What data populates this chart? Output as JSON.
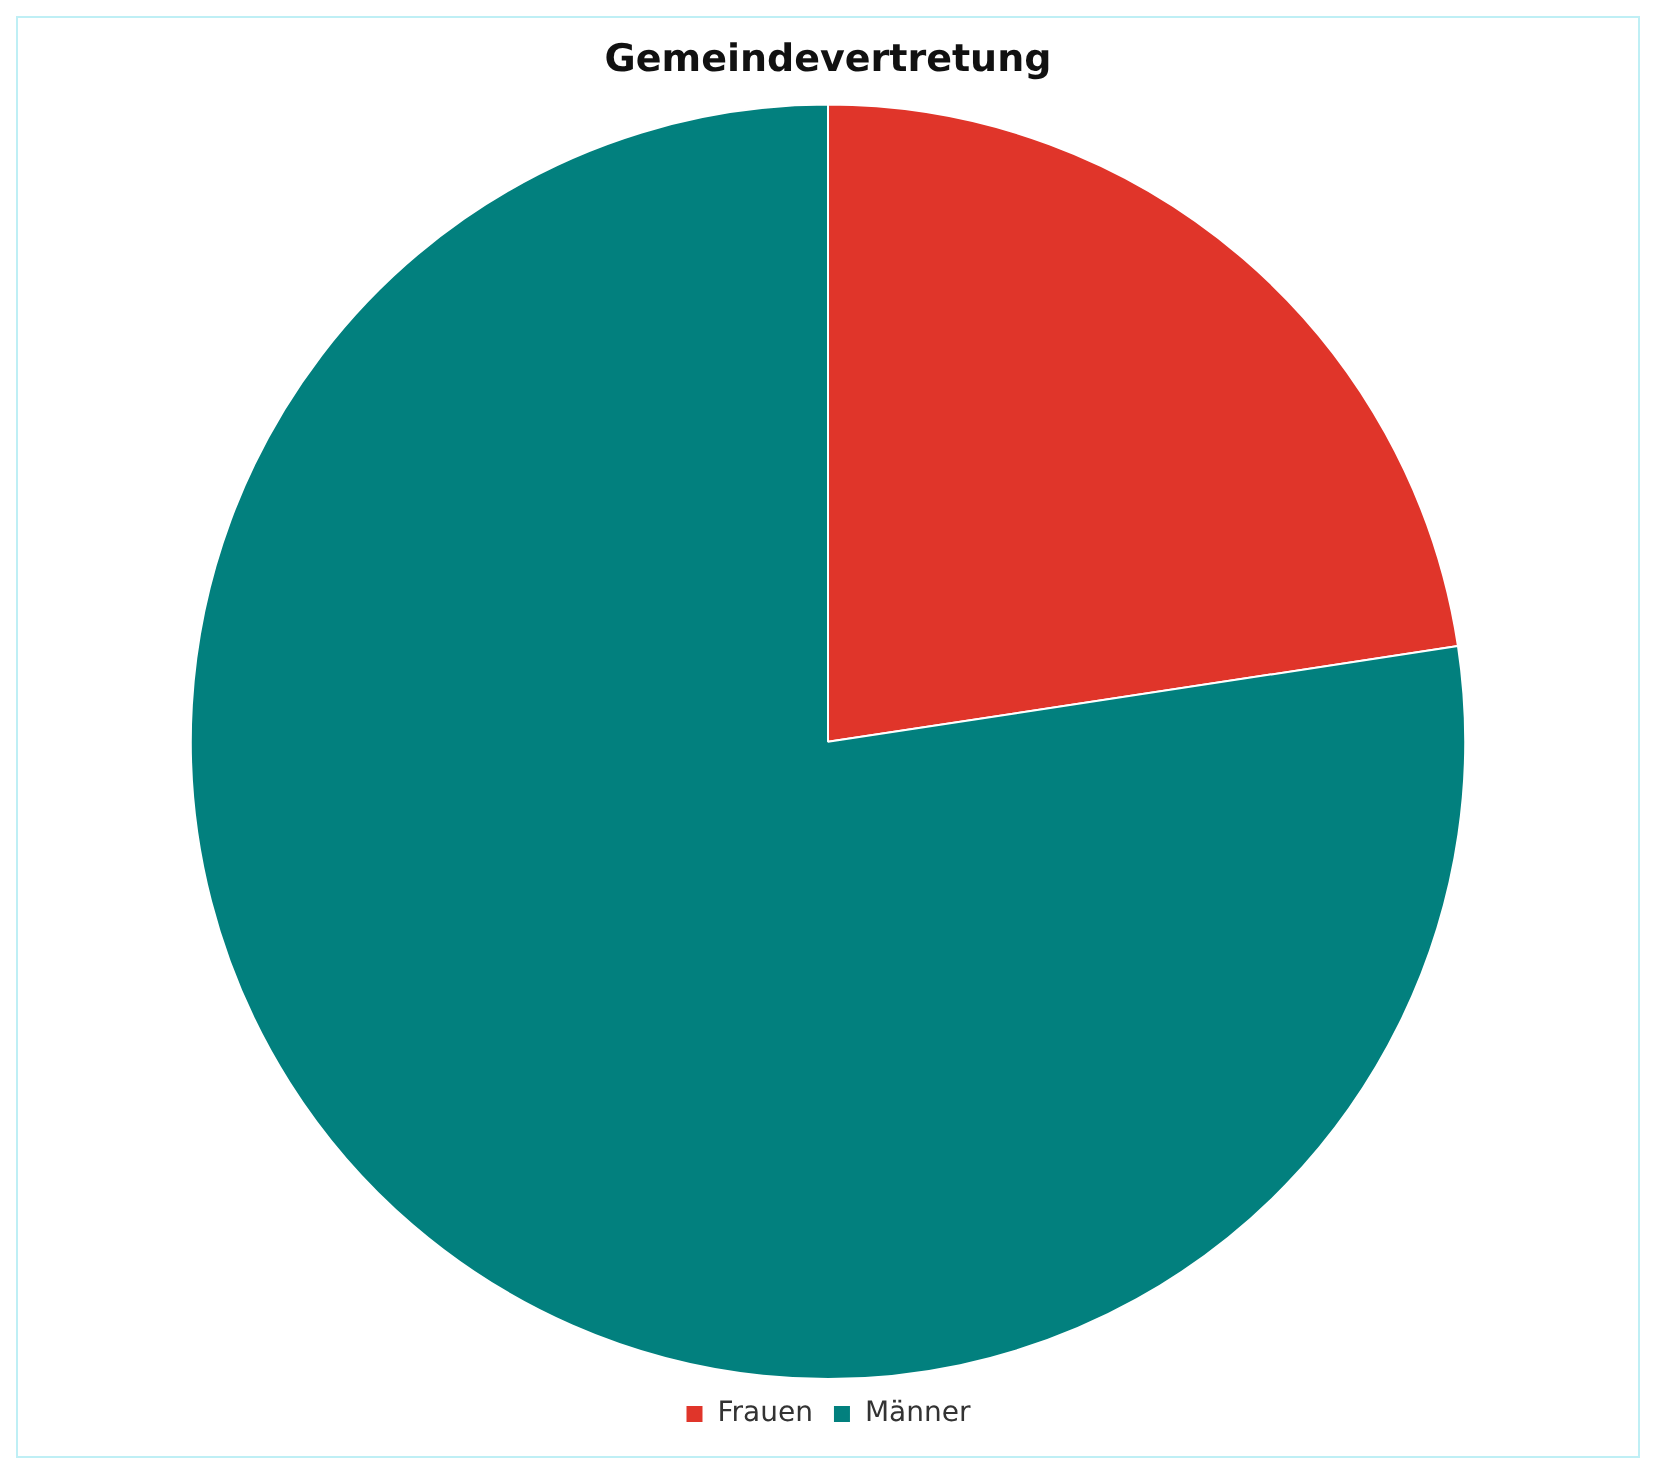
{
  "chart_data": {
    "type": "pie",
    "title": "Gemeindevertretung",
    "categories": [
      "Frauen",
      "Männer"
    ],
    "values": [
      22.6,
      77.4
    ],
    "colors": [
      "#e0352a",
      "#02807e"
    ],
    "legend": "bottom"
  }
}
